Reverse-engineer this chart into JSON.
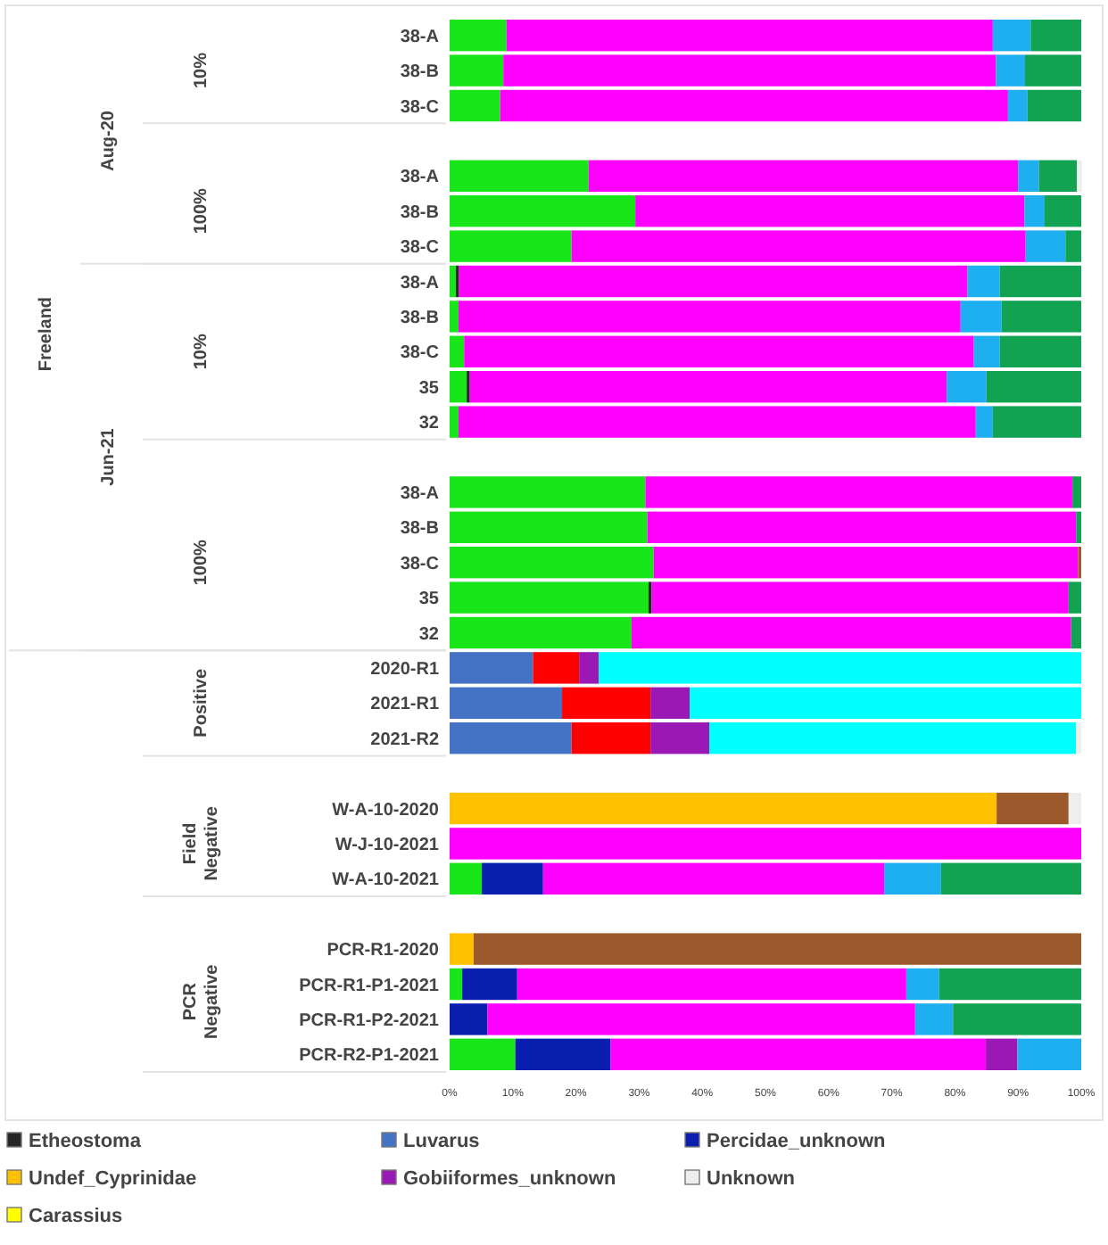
{
  "chart_data": {
    "type": "bar",
    "orientation": "horizontal",
    "stacked": true,
    "categories": [
      "38-A",
      "38-B",
      "38-C",
      null,
      "38-A",
      "38-B",
      "38-C",
      "38-A",
      "38-B",
      "38-C",
      "35",
      "32",
      null,
      "38-A",
      "38-B",
      "38-C",
      "35",
      "32",
      "2020-R1",
      "2021-R1",
      "2021-R2",
      null,
      "W-A-10-2020",
      "W-J-10-2021",
      "W-A-10-2021",
      null,
      "PCR-R1-2020",
      "PCR-R1-P1-2021",
      "PCR-R1-P2-2021",
      "PCR-R2-P1-2021"
    ],
    "series": [
      {
        "color": "#19e619",
        "values": [
          9,
          8.5,
          8,
          null,
          22,
          29.4,
          19.3,
          1,
          1.4,
          2.3,
          2.7,
          1.4,
          null,
          31,
          31.3,
          32.3,
          31.5,
          28.8,
          null,
          null,
          null,
          null,
          null,
          null,
          5.1,
          null,
          null,
          2,
          null,
          10.4
        ]
      },
      {
        "name": "Etheostoma",
        "color": "#262626",
        "values": [
          null,
          null,
          null,
          null,
          null,
          null,
          null,
          0.5,
          null,
          null,
          0.5,
          null,
          null,
          null,
          null,
          null,
          0.5,
          null,
          null,
          null,
          null,
          null,
          null,
          null,
          null,
          null,
          null,
          null,
          null,
          null
        ]
      },
      {
        "name": "Luvarus",
        "color": "#4472c4",
        "values": [
          null,
          null,
          null,
          null,
          null,
          null,
          null,
          null,
          null,
          null,
          null,
          null,
          null,
          null,
          null,
          null,
          null,
          null,
          13.2,
          17.8,
          19.3,
          null,
          null,
          null,
          null,
          null,
          null,
          null,
          null,
          null
        ]
      },
      {
        "color": "#ff0000",
        "values": [
          null,
          null,
          null,
          null,
          null,
          null,
          null,
          null,
          null,
          null,
          null,
          null,
          null,
          null,
          null,
          null,
          null,
          null,
          7.3,
          14,
          12.5,
          null,
          null,
          null,
          null,
          null,
          null,
          null,
          null,
          null
        ]
      },
      {
        "name": "Percidae_unknown",
        "color": "#0a1fb0",
        "values": [
          null,
          null,
          null,
          null,
          null,
          null,
          null,
          null,
          null,
          null,
          null,
          null,
          null,
          null,
          null,
          null,
          null,
          null,
          null,
          null,
          null,
          null,
          null,
          null,
          9.7,
          null,
          null,
          8.7,
          6,
          15.1
        ]
      },
      {
        "name": "Undef_Cyprinidae",
        "color": "#ffc000",
        "values": [
          null,
          null,
          null,
          null,
          null,
          null,
          null,
          null,
          null,
          null,
          null,
          null,
          null,
          null,
          null,
          null,
          null,
          null,
          null,
          null,
          null,
          null,
          86.6,
          null,
          null,
          null,
          3.8,
          null,
          null,
          null
        ]
      },
      {
        "color": "#ff00ff",
        "values": [
          77,
          78,
          80.4,
          null,
          68,
          61.6,
          71.9,
          80.5,
          79.5,
          80.7,
          75.5,
          81.9,
          null,
          67.6,
          67.9,
          67.2,
          66,
          69.6,
          null,
          null,
          null,
          null,
          null,
          100,
          54,
          null,
          null,
          61.6,
          67.7,
          59.4
        ]
      },
      {
        "name": "Gobiiformes_unknown",
        "color": "#9a18b4",
        "values": [
          null,
          null,
          null,
          null,
          null,
          null,
          null,
          null,
          null,
          null,
          null,
          null,
          null,
          null,
          null,
          null,
          null,
          null,
          3.1,
          6.2,
          9.3,
          null,
          null,
          null,
          null,
          null,
          null,
          null,
          null,
          5
        ]
      },
      {
        "color": "#00ffff",
        "values": [
          null,
          null,
          null,
          null,
          null,
          null,
          null,
          null,
          null,
          null,
          null,
          null,
          null,
          null,
          null,
          null,
          null,
          null,
          76.4,
          62,
          58.1,
          null,
          null,
          null,
          null,
          null,
          null,
          null,
          null,
          null
        ]
      },
      {
        "color": "#1eaff0",
        "values": [
          6,
          4.6,
          3.1,
          null,
          3.3,
          3.2,
          6.3,
          5.1,
          6.5,
          4.1,
          6.3,
          2.7,
          null,
          null,
          null,
          null,
          null,
          null,
          null,
          null,
          null,
          null,
          null,
          null,
          9,
          null,
          null,
          5.2,
          6,
          10.1
        ]
      },
      {
        "color": "#12a352",
        "values": [
          8,
          8.9,
          8.5,
          null,
          6,
          5.8,
          2.5,
          12.9,
          12.6,
          12.9,
          15,
          14,
          null,
          1.4,
          0.8,
          null,
          2,
          1.6,
          null,
          null,
          null,
          null,
          null,
          null,
          22.2,
          null,
          null,
          22.5,
          20.3,
          null
        ]
      },
      {
        "color": "#9c5a2c",
        "values": [
          null,
          null,
          null,
          null,
          null,
          null,
          null,
          null,
          null,
          null,
          null,
          null,
          null,
          null,
          null,
          0.5,
          null,
          null,
          null,
          null,
          null,
          null,
          11.4,
          null,
          null,
          null,
          96.2,
          null,
          null,
          null
        ]
      },
      {
        "name": "Unknown",
        "color": "#eeeeee",
        "values": [
          null,
          null,
          null,
          null,
          0.8,
          null,
          null,
          null,
          null,
          null,
          null,
          null,
          null,
          null,
          null,
          null,
          null,
          null,
          null,
          null,
          0.8,
          null,
          2,
          null,
          null,
          null,
          null,
          null,
          null,
          null
        ]
      },
      {
        "name": "Carassius",
        "color": "#ffff00",
        "values": [
          null,
          null,
          null,
          null,
          null,
          null,
          null,
          null,
          null,
          null,
          null,
          null,
          null,
          null,
          null,
          null,
          null,
          null,
          null,
          null,
          null,
          null,
          null,
          null,
          null,
          null,
          null,
          null,
          null,
          null
        ]
      }
    ],
    "xlim": [
      0,
      100
    ],
    "xticks": [
      {
        "value": 0,
        "label": "0%"
      },
      {
        "value": 10,
        "label": "10%"
      },
      {
        "value": 20,
        "label": "20%"
      },
      {
        "value": 30,
        "label": "30%"
      },
      {
        "value": 40,
        "label": "40%"
      },
      {
        "value": 50,
        "label": "50%"
      },
      {
        "value": 60,
        "label": "60%"
      },
      {
        "value": 70,
        "label": "70%"
      },
      {
        "value": 80,
        "label": "80%"
      },
      {
        "value": 90,
        "label": "90%"
      },
      {
        "value": 100,
        "label": "100%"
      }
    ],
    "annotations": [
      "10%",
      "100%",
      "10%",
      "100%",
      "Positive",
      "Field Negative",
      "PCR Negative",
      "Aug-20",
      "Jun-21",
      "Freeland"
    ],
    "legend": "bottom",
    "grid": false
  }
}
